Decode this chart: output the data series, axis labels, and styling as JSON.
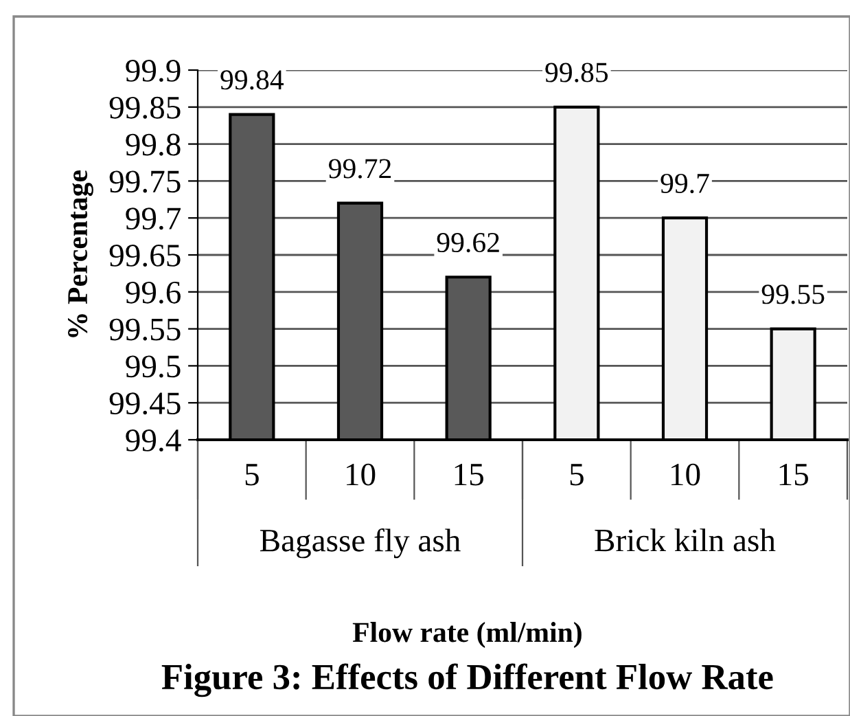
{
  "chart_data": {
    "type": "bar",
    "title": "Figure 3: Effects of Different Flow Rate",
    "ylabel": "% Percentage",
    "categories": [
      "5",
      "10",
      "15",
      "5",
      "10",
      "15"
    ],
    "annotations": [
      "Bagasse fly ash",
      "Brick kiln ash",
      "Flow rate (ml/min)"
    ],
    "values": [
      99.84,
      99.72,
      99.62,
      99.85,
      99.7,
      99.55
    ],
    "colors": [
      "#595959",
      "#595959",
      "#595959",
      "#f2f2f2",
      "#f2f2f2",
      "#f2f2f2"
    ],
    "data_labels": true,
    "ylim": [
      99.4,
      99.9
    ],
    "yticks": [
      99.4,
      99.45,
      99.5,
      99.55,
      99.6,
      99.65,
      99.7,
      99.75,
      99.8,
      99.85,
      99.9
    ],
    "grid": "y"
  }
}
